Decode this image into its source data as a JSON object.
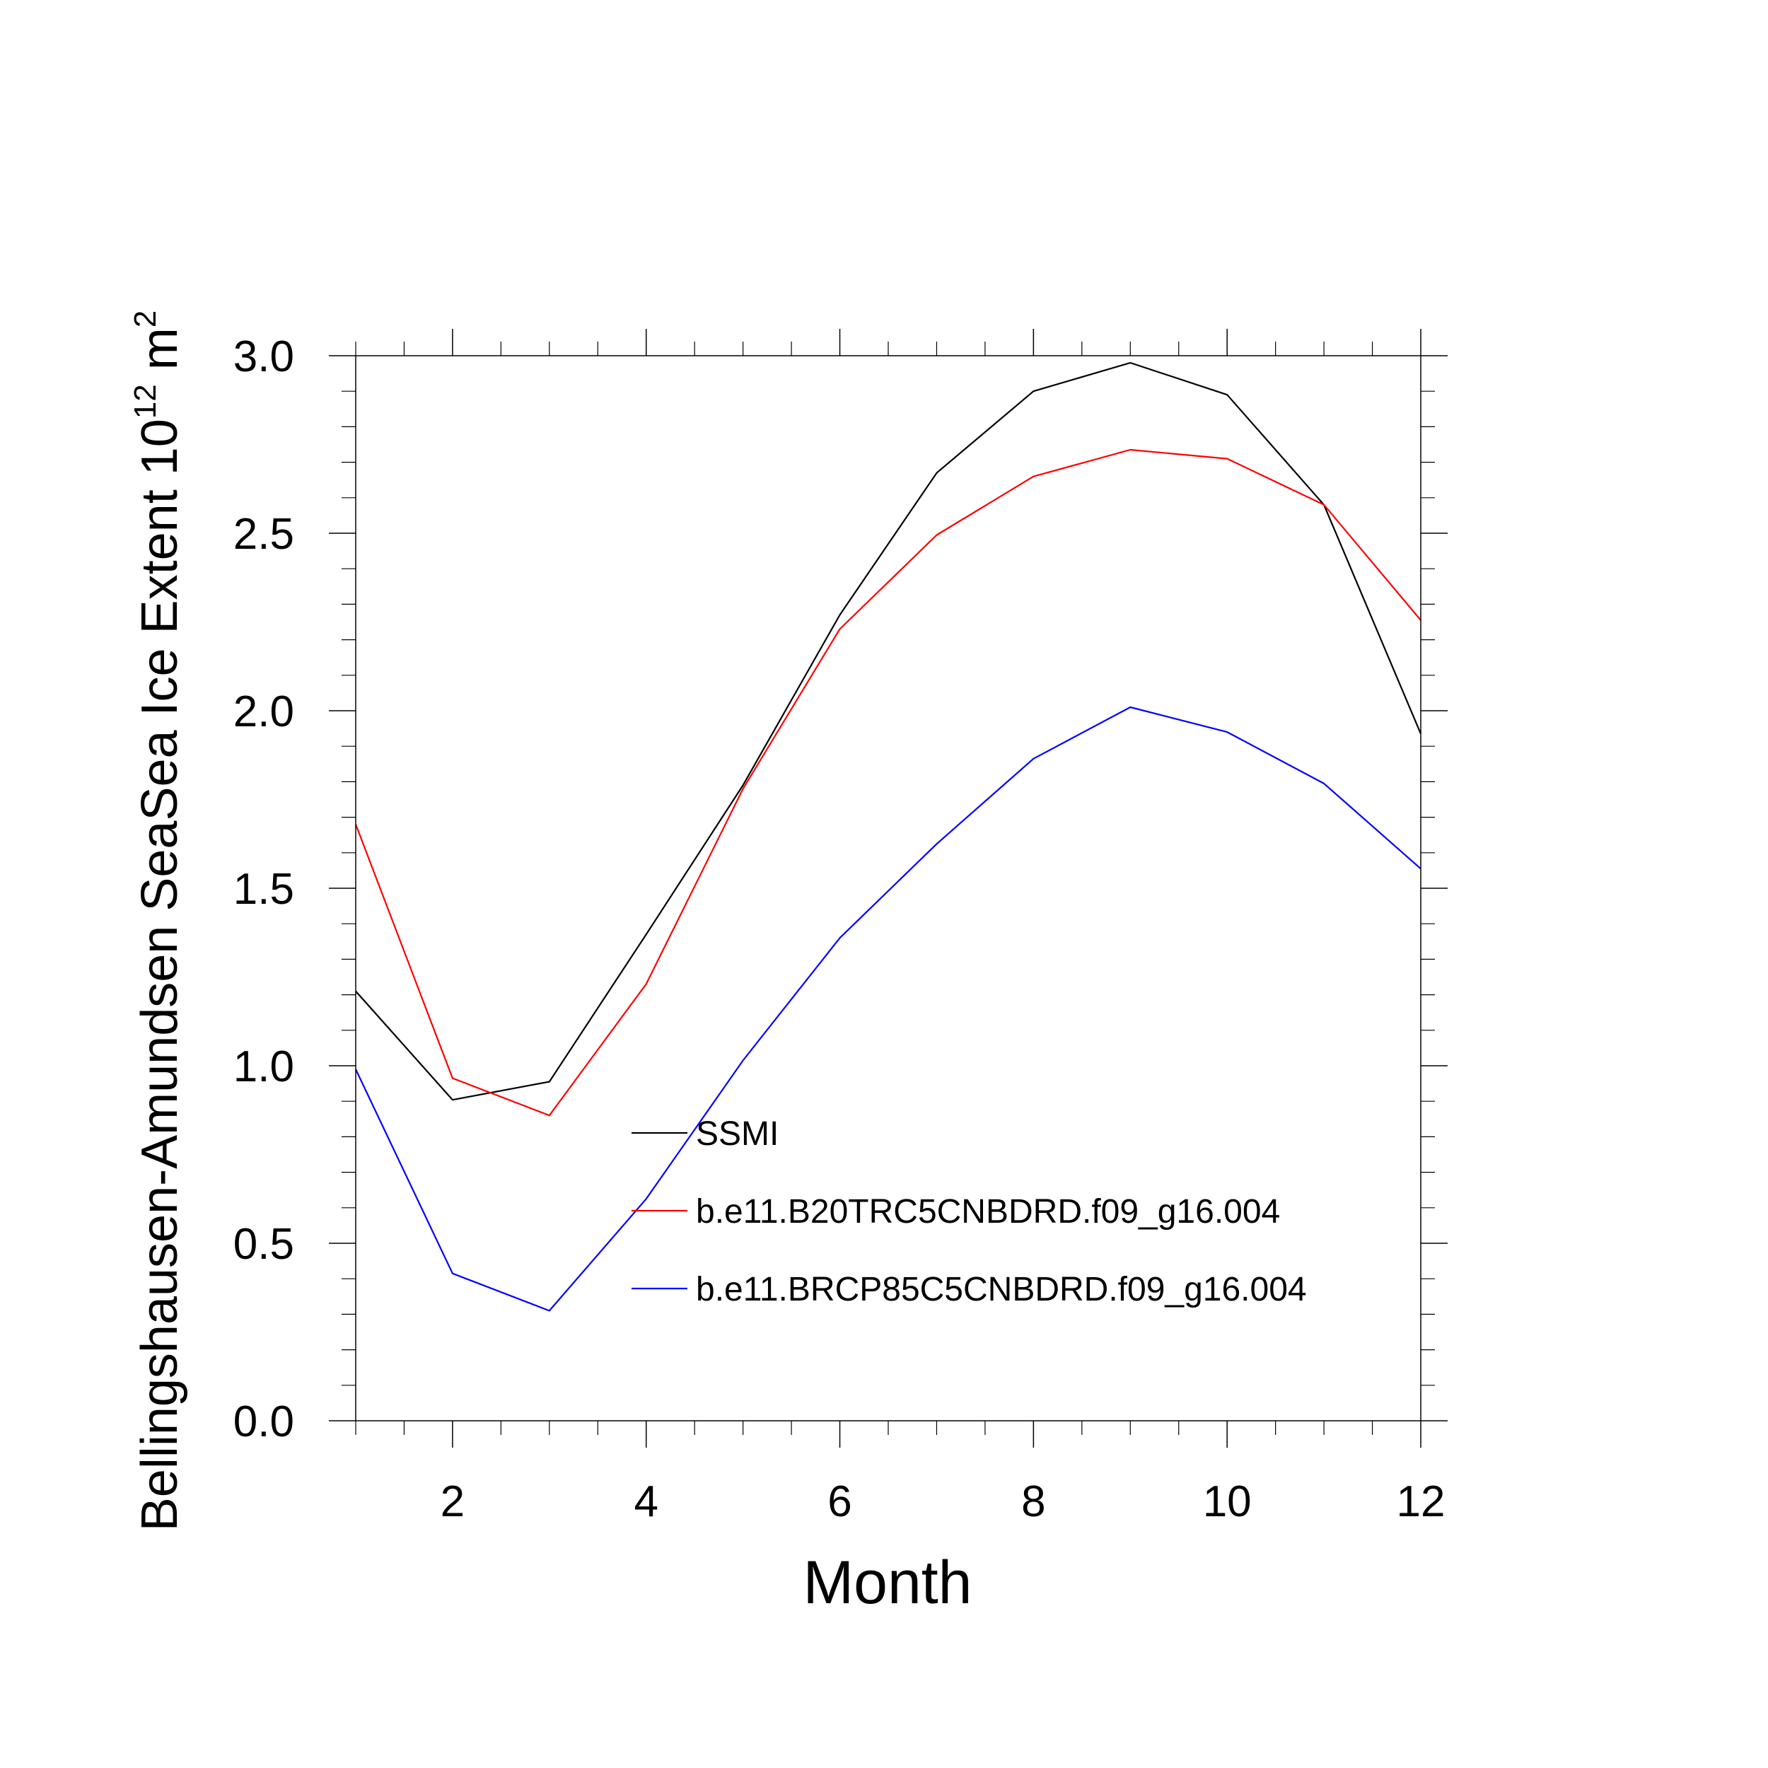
{
  "chart_data": {
    "type": "line",
    "title": "",
    "xlabel": "Month",
    "ylabel": {
      "prefix": "Bellingshausen-Amundsen SeaSea Ice Extent 10",
      "exponent1": "12",
      "mid": " m",
      "exponent2": "2"
    },
    "xlim": [
      1,
      12
    ],
    "ylim": [
      0,
      3
    ],
    "x_ticks": [
      2,
      4,
      6,
      8,
      10,
      12
    ],
    "x_tick_labels": [
      "2",
      "4",
      "6",
      "8",
      "10",
      "12"
    ],
    "y_ticks": [
      0,
      0.5,
      1,
      1.5,
      2,
      2.5,
      3
    ],
    "y_tick_labels": [
      "0.0",
      "0.5",
      "1.0",
      "1.5",
      "2.0",
      "2.5",
      "3.0"
    ],
    "legend_position": "center-right",
    "grid": false,
    "x": [
      1,
      2,
      3,
      4,
      5,
      6,
      7,
      8,
      9,
      10,
      11,
      12
    ],
    "series": [
      {
        "name": "SSMI",
        "color": "#000000",
        "values": [
          1.21,
          0.904,
          0.955,
          1.37,
          1.79,
          2.27,
          2.67,
          2.9,
          2.98,
          2.89,
          2.58,
          1.935
        ]
      },
      {
        "name": "b.e11.B20TRC5CNBDRD.f09_g16.004",
        "color": "#ff0000",
        "values": [
          1.68,
          0.965,
          0.86,
          1.23,
          1.78,
          2.23,
          2.495,
          2.66,
          2.735,
          2.71,
          2.58,
          2.255
        ]
      },
      {
        "name": "b.e11.BRCP85C5CNBDRD.f09_g16.004",
        "color": "#0000ff",
        "values": [
          0.99,
          0.415,
          0.31,
          0.625,
          1.015,
          1.36,
          1.625,
          1.865,
          2.01,
          1.94,
          1.795,
          1.555
        ]
      }
    ]
  }
}
